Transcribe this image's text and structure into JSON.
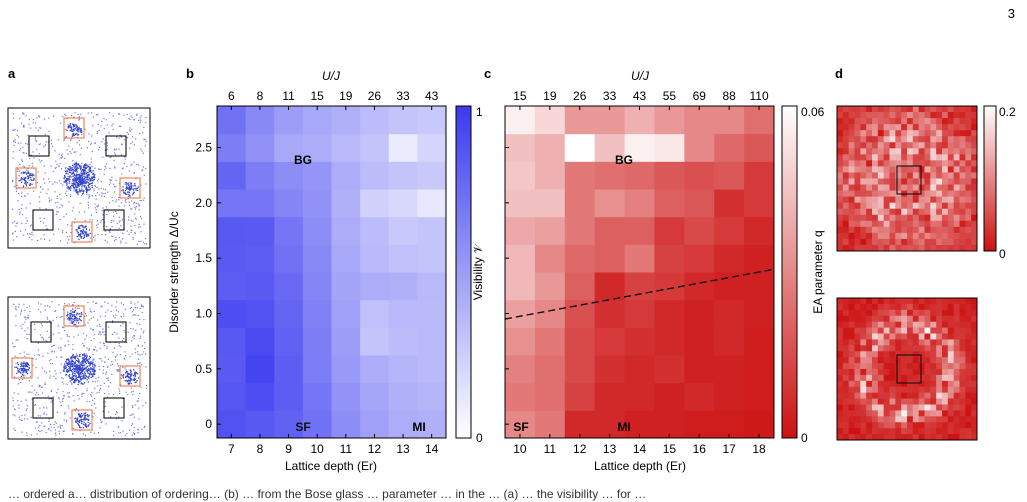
{
  "page_number": "3",
  "caption_fragment": "… ordered a… distribution of ordering… (b) … from the Bose glass … parameter … in the … (a) … the visibility … for …",
  "panel_labels": [
    "a",
    "b",
    "c",
    "d"
  ],
  "panel_b": {
    "top_axis_label": "U/J",
    "top_ticks": [
      "6",
      "8",
      "11",
      "15",
      "19",
      "26",
      "33",
      "43"
    ],
    "x_label": "Lattice depth (Er)",
    "x_ticks": [
      "7",
      "8",
      "9",
      "10",
      "11",
      "12",
      "13",
      "14"
    ],
    "y_label": "Disorder strength Δ/Uc",
    "y_ticks": [
      "0",
      "0.5",
      "1.0",
      "1.5",
      "2.0",
      "2.5"
    ],
    "colorbar_label": "Visibility 𝒱",
    "colorbar_ticks": [
      "1",
      "0"
    ],
    "region_labels": {
      "bg": "BG",
      "sf": "SF",
      "mi": "MI"
    },
    "colors": {
      "low": "#ffffff",
      "high": "#3a3af0"
    }
  },
  "panel_c": {
    "top_axis_label": "U/J",
    "top_ticks": [
      "15",
      "19",
      "26",
      "33",
      "43",
      "55",
      "69",
      "88",
      "110"
    ],
    "x_label": "Lattice depth (Er)",
    "x_ticks": [
      "10",
      "11",
      "12",
      "13",
      "14",
      "15",
      "16",
      "17",
      "18"
    ],
    "colorbar_label": "EA parameter q",
    "colorbar_ticks": [
      "0.06",
      "0"
    ],
    "region_labels": {
      "bg": "BG",
      "sf": "SF",
      "mi": "MI"
    },
    "colors": {
      "low": "#cc1111",
      "high": "#ffffff"
    }
  },
  "panel_d": {
    "colorbar_ticks": [
      "0.2",
      "0"
    ],
    "colors": {
      "low": "#cc1111",
      "high": "#ffffff"
    }
  },
  "chart_data": [
    {
      "type": "heatmap",
      "panel": "b",
      "x": [
        7,
        8,
        9,
        10,
        11,
        12,
        13,
        14
      ],
      "top_axis": [
        6,
        8,
        11,
        15,
        19,
        26,
        33,
        43
      ],
      "y": [
        0,
        0.25,
        0.5,
        0.75,
        1.0,
        1.25,
        1.5,
        1.75,
        2.0,
        2.25,
        2.5,
        2.75
      ],
      "zlim": [
        0,
        1
      ],
      "values": [
        [
          0.88,
          0.85,
          0.8,
          0.72,
          0.58,
          0.48,
          0.42,
          0.4
        ],
        [
          0.86,
          0.9,
          0.82,
          0.7,
          0.55,
          0.45,
          0.4,
          0.38
        ],
        [
          0.84,
          0.95,
          0.82,
          0.66,
          0.52,
          0.42,
          0.38,
          0.36
        ],
        [
          0.85,
          0.92,
          0.8,
          0.66,
          0.5,
          0.3,
          0.34,
          0.36
        ],
        [
          0.9,
          0.88,
          0.78,
          0.64,
          0.48,
          0.32,
          0.36,
          0.35
        ],
        [
          0.82,
          0.84,
          0.76,
          0.62,
          0.46,
          0.42,
          0.4,
          0.36
        ],
        [
          0.84,
          0.82,
          0.72,
          0.6,
          0.44,
          0.36,
          0.32,
          0.3
        ],
        [
          0.85,
          0.84,
          0.7,
          0.58,
          0.42,
          0.34,
          0.28,
          0.3
        ],
        [
          0.7,
          0.7,
          0.62,
          0.56,
          0.4,
          0.24,
          0.2,
          0.12
        ],
        [
          0.78,
          0.66,
          0.58,
          0.54,
          0.42,
          0.34,
          0.3,
          0.28
        ],
        [
          0.66,
          0.56,
          0.44,
          0.42,
          0.36,
          0.3,
          0.1,
          0.22
        ],
        [
          0.72,
          0.6,
          0.5,
          0.44,
          0.4,
          0.34,
          0.3,
          0.28
        ]
      ]
    },
    {
      "type": "heatmap",
      "panel": "c",
      "x": [
        10,
        11,
        12,
        13,
        14,
        15,
        16,
        17,
        18
      ],
      "top_axis": [
        15,
        19,
        26,
        33,
        43,
        55,
        69,
        88,
        110
      ],
      "y": [
        0,
        0.25,
        0.5,
        0.75,
        1.0,
        1.25,
        1.5,
        1.75,
        2.0,
        2.25,
        2.5,
        2.75
      ],
      "zlim": [
        0,
        0.06
      ],
      "values": [
        [
          0.03,
          0.026,
          0.006,
          0.006,
          0.004,
          0.004,
          0.003,
          0.003,
          0.002
        ],
        [
          0.026,
          0.024,
          0.012,
          0.006,
          0.006,
          0.004,
          0.006,
          0.004,
          0.003
        ],
        [
          0.028,
          0.024,
          0.014,
          0.008,
          0.006,
          0.008,
          0.004,
          0.004,
          0.003
        ],
        [
          0.032,
          0.026,
          0.014,
          0.01,
          0.008,
          0.006,
          0.004,
          0.006,
          0.003
        ],
        [
          0.036,
          0.03,
          0.016,
          0.008,
          0.01,
          0.006,
          0.004,
          0.006,
          0.004
        ],
        [
          0.042,
          0.034,
          0.02,
          0.006,
          0.012,
          0.01,
          0.006,
          0.004,
          0.004
        ],
        [
          0.042,
          0.03,
          0.022,
          0.02,
          0.026,
          0.012,
          0.01,
          0.006,
          0.004
        ],
        [
          0.038,
          0.036,
          0.026,
          0.02,
          0.02,
          0.01,
          0.014,
          0.01,
          0.006
        ],
        [
          0.044,
          0.044,
          0.026,
          0.032,
          0.028,
          0.02,
          0.018,
          0.008,
          0.01
        ],
        [
          0.046,
          0.04,
          0.026,
          0.024,
          0.022,
          0.018,
          0.016,
          0.018,
          0.01
        ],
        [
          0.044,
          0.04,
          0.06,
          0.044,
          0.056,
          0.054,
          0.03,
          0.022,
          0.018
        ],
        [
          0.056,
          0.05,
          0.034,
          0.034,
          0.04,
          0.034,
          0.03,
          0.03,
          0.024
        ]
      ],
      "phase_boundary": {
        "x": [
          9.5,
          18.5
        ],
        "y": [
          0.95,
          1.4
        ]
      }
    }
  ]
}
